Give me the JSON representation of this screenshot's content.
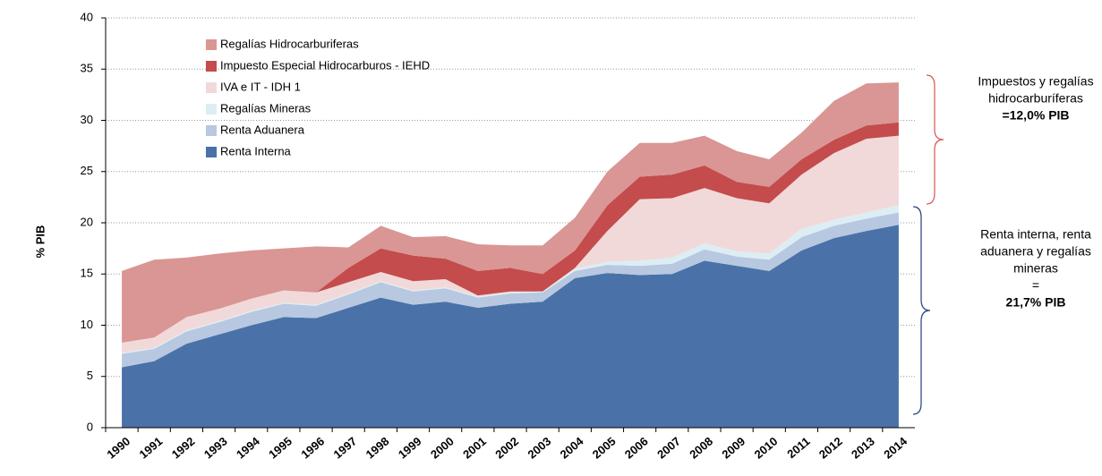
{
  "chart_data": {
    "type": "stacked_area",
    "y_label": "% PIB",
    "categories": [
      "1990",
      "1991",
      "1992",
      "1993",
      "1994",
      "1995",
      "1996",
      "1997",
      "1998",
      "1999",
      "2000",
      "2001",
      "2002",
      "2003",
      "2004",
      "2005",
      "2006",
      "2007",
      "2008",
      "2009",
      "2010",
      "2011",
      "2012",
      "2013",
      "2014"
    ],
    "series": [
      {
        "name": "Renta Interna",
        "color": "#4a72a8",
        "values": [
          5.9,
          6.5,
          8.2,
          9.1,
          10.0,
          10.8,
          10.7,
          11.7,
          12.7,
          12.0,
          12.3,
          11.7,
          12.1,
          12.3,
          14.6,
          15.1,
          14.9,
          15.0,
          16.3,
          15.8,
          15.3,
          17.3,
          18.5,
          19.2,
          19.8
        ]
      },
      {
        "name": "Renta Aduanera",
        "color": "#b7c8e0",
        "values": [
          1.3,
          1.2,
          1.2,
          1.2,
          1.3,
          1.3,
          1.2,
          1.3,
          1.5,
          1.3,
          1.3,
          1.0,
          1.0,
          0.9,
          0.7,
          0.8,
          0.9,
          1.0,
          1.1,
          0.9,
          1.1,
          1.3,
          1.2,
          1.2,
          1.2
        ]
      },
      {
        "name": "Regalías Mineras",
        "color": "#dceef4",
        "values": [
          0.1,
          0.1,
          0.1,
          0.1,
          0.1,
          0.1,
          0.1,
          0.1,
          0.1,
          0.1,
          0.1,
          0.1,
          0.1,
          0.1,
          0.2,
          0.3,
          0.5,
          0.6,
          0.6,
          0.5,
          0.6,
          0.8,
          0.6,
          0.6,
          0.7
        ]
      },
      {
        "name": "IVA e IT - IDH 1",
        "color": "#f2d9d9",
        "values": [
          1.0,
          1.0,
          1.3,
          1.2,
          1.2,
          1.2,
          1.2,
          1.1,
          0.9,
          0.9,
          0.8,
          0.1,
          0.1,
          0.0,
          0.1,
          3.0,
          6.0,
          5.8,
          5.4,
          5.2,
          4.9,
          5.3,
          6.5,
          7.2,
          6.8
        ]
      },
      {
        "name": "Impuesto Especial Hidrocarburos - IEHD",
        "color": "#c44c4c",
        "values": [
          0,
          0,
          0,
          0,
          0,
          0,
          0,
          1.4,
          2.3,
          2.5,
          2.0,
          2.4,
          2.3,
          1.7,
          1.7,
          2.5,
          2.2,
          2.3,
          2.2,
          1.6,
          1.6,
          1.5,
          1.3,
          1.3,
          1.3
        ]
      },
      {
        "name": "Regalías Hidrocarburiferas",
        "color": "#d99694",
        "values": [
          7.0,
          7.6,
          5.8,
          5.4,
          4.7,
          4.1,
          4.5,
          2.0,
          2.2,
          1.8,
          2.2,
          2.6,
          2.2,
          2.8,
          3.2,
          3.3,
          3.3,
          3.1,
          2.9,
          3.0,
          2.7,
          2.6,
          3.8,
          4.1,
          3.9
        ]
      }
    ],
    "ylim": [
      0,
      40
    ],
    "yticks": [
      0,
      5,
      10,
      15,
      20,
      25,
      30,
      35,
      40
    ],
    "grid": true,
    "annotations": [
      {
        "color": "#d9534f",
        "lines": [
          "Impuestos y regalías",
          "hidrocarburíferas",
          "=12,0% PIB"
        ]
      },
      {
        "color": "#1f3f7a",
        "lines": [
          "Renta interna, renta",
          "aduanera y regalías",
          "mineras",
          "=",
          "21,7% PIB"
        ]
      }
    ]
  }
}
